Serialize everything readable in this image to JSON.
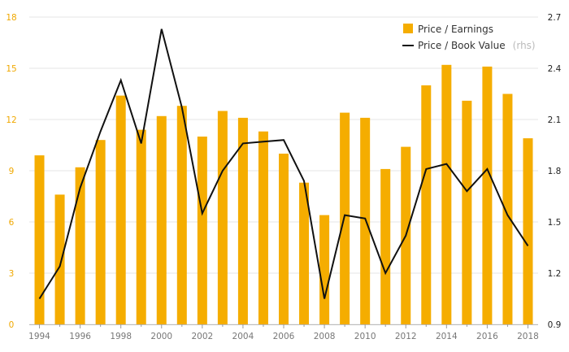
{
  "chart_data": {
    "type": "bar+line",
    "categories": [
      "1994",
      "1995",
      "1996",
      "1997",
      "1998",
      "1999",
      "2000",
      "2001",
      "2002",
      "2003",
      "2004",
      "2005",
      "2006",
      "2007",
      "2008",
      "2009",
      "2010",
      "2011",
      "2012",
      "2013",
      "2014",
      "2015",
      "2016",
      "2017",
      "2018"
    ],
    "x_tick_labels": [
      "1994",
      "1996",
      "1998",
      "2000",
      "2002",
      "2004",
      "2006",
      "2008",
      "2010",
      "2012",
      "2014",
      "2016",
      "2018"
    ],
    "series": [
      {
        "name": "Price / Earnings",
        "type": "bar",
        "axis": "left",
        "color": "#f5ad00",
        "values": [
          9.9,
          7.6,
          9.2,
          10.8,
          13.4,
          11.4,
          12.2,
          12.8,
          11.0,
          12.5,
          12.1,
          11.3,
          10.0,
          8.3,
          6.4,
          12.4,
          12.1,
          9.1,
          10.4,
          14.0,
          15.2,
          13.1,
          15.1,
          13.5,
          10.9
        ]
      },
      {
        "name": "Price / Book Value",
        "type": "line",
        "axis": "right",
        "color": "#111111",
        "values": [
          1.05,
          1.24,
          1.7,
          2.03,
          2.33,
          1.96,
          2.63,
          2.17,
          1.55,
          1.8,
          1.96,
          1.97,
          1.98,
          1.74,
          1.05,
          1.54,
          1.52,
          1.2,
          1.42,
          1.81,
          1.84,
          1.68,
          1.81,
          1.54,
          1.36
        ]
      }
    ],
    "legend": {
      "position": "top-right",
      "rhs_note": "(rhs)"
    },
    "y_left": {
      "ylim": [
        0,
        18
      ],
      "ticks": [
        "0",
        "3",
        "6",
        "9",
        "12",
        "15",
        "18"
      ],
      "color": "#f0a800"
    },
    "y_right": {
      "ylim": [
        0.9,
        2.7
      ],
      "ticks": [
        "0.9",
        "1.2",
        "1.5",
        "1.8",
        "2.1",
        "2.4",
        "2.7"
      ]
    },
    "grid": true
  }
}
